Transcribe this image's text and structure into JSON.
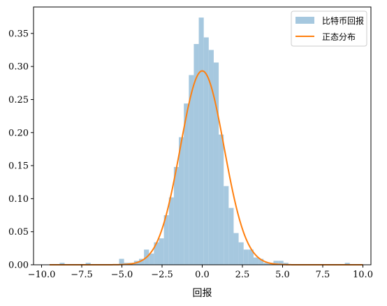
{
  "chart_data": {
    "type": "bar",
    "xlabel": "回报",
    "ylabel": "",
    "xlim": [
      -10.5,
      10.5
    ],
    "ylim": [
      0,
      0.39
    ],
    "x_ticks": [
      -10.0,
      -7.5,
      -5.0,
      -2.5,
      0.0,
      2.5,
      5.0,
      7.5,
      10.0
    ],
    "x_tick_labels": [
      "−10.0",
      "−7.5",
      "−5.0",
      "−2.5",
      "0.0",
      "2.5",
      "5.0",
      "7.5",
      "10.0"
    ],
    "y_ticks": [
      0.0,
      0.05,
      0.1,
      0.15,
      0.2,
      0.25,
      0.3,
      0.35
    ],
    "y_tick_labels": [
      "0.00",
      "0.05",
      "0.10",
      "0.15",
      "0.20",
      "0.25",
      "0.30",
      "0.35"
    ],
    "grid": false,
    "legend_position": "top-right",
    "series": [
      {
        "name": "比特币回报",
        "kind": "histogram",
        "color": "#a6c8df",
        "bin_width": 0.31,
        "bins": [
          {
            "x": -8.72,
            "y": 0.003
          },
          {
            "x": -7.1,
            "y": 0.003
          },
          {
            "x": -5.02,
            "y": 0.009
          },
          {
            "x": -4.71,
            "y": 0.003
          },
          {
            "x": -4.4,
            "y": 0.003
          },
          {
            "x": -4.09,
            "y": 0.006
          },
          {
            "x": -3.78,
            "y": 0.009
          },
          {
            "x": -3.47,
            "y": 0.023
          },
          {
            "x": -3.16,
            "y": 0.017
          },
          {
            "x": -2.85,
            "y": 0.034
          },
          {
            "x": -2.54,
            "y": 0.04
          },
          {
            "x": -2.23,
            "y": 0.075
          },
          {
            "x": -1.92,
            "y": 0.102
          },
          {
            "x": -1.61,
            "y": 0.148
          },
          {
            "x": -1.3,
            "y": 0.193
          },
          {
            "x": -0.99,
            "y": 0.244
          },
          {
            "x": -0.68,
            "y": 0.287
          },
          {
            "x": -0.37,
            "y": 0.334
          },
          {
            "x": -0.06,
            "y": 0.374
          },
          {
            "x": 0.25,
            "y": 0.344
          },
          {
            "x": 0.56,
            "y": 0.325
          },
          {
            "x": 0.87,
            "y": 0.306
          },
          {
            "x": 1.18,
            "y": 0.197
          },
          {
            "x": 1.49,
            "y": 0.119
          },
          {
            "x": 1.8,
            "y": 0.086
          },
          {
            "x": 2.11,
            "y": 0.048
          },
          {
            "x": 2.42,
            "y": 0.034
          },
          {
            "x": 2.73,
            "y": 0.023
          },
          {
            "x": 3.04,
            "y": 0.023
          },
          {
            "x": 3.35,
            "y": 0.011
          },
          {
            "x": 3.66,
            "y": 0.009
          },
          {
            "x": 3.97,
            "y": 0.003
          },
          {
            "x": 4.28,
            "y": 0.003
          },
          {
            "x": 4.59,
            "y": 0.006
          },
          {
            "x": 4.9,
            "y": 0.006
          },
          {
            "x": 5.21,
            "y": 0.003
          },
          {
            "x": 9.03,
            "y": 0.003
          }
        ]
      },
      {
        "name": "正态分布",
        "kind": "line",
        "color": "#ff7f0e",
        "mean": 0.0,
        "std": 1.36
      }
    ]
  }
}
